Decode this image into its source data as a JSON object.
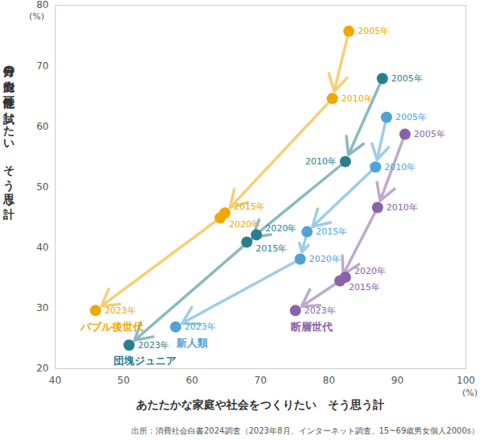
{
  "chart_data": {
    "type": "scatter",
    "x_label": "あたたかな家庭や社会をつくりたい　そう思う計",
    "y_label": "自分の能力や可能性を試したい　そう思う計",
    "x_unit": "(%)",
    "y_unit": "(%)",
    "source": "出所：消費社会白書2024調査（2023年8月、インターネット調査、15~69歳男女個人2000s）",
    "xlim": [
      40,
      100
    ],
    "ylim": [
      20,
      80
    ],
    "xticks": [
      40,
      50,
      60,
      70,
      80,
      90,
      100
    ],
    "yticks": [
      20,
      30,
      40,
      50,
      60,
      70,
      80
    ],
    "grid": false,
    "marker": "circle",
    "line_style": "arrow",
    "series": [
      {
        "name": "バブル後世代",
        "color": "#f0a800",
        "point_labels": [
          "2005年",
          "2010年",
          "2015年",
          "2020年",
          "2023年"
        ],
        "x": [
          82.9,
          80.5,
          64.8,
          64.1,
          45.9
        ],
        "values": [
          75.7,
          64.6,
          45.7,
          44.9,
          29.6
        ]
      },
      {
        "name": "団塊ジュニア",
        "color": "#2a7f8f",
        "point_labels": [
          "2005年",
          "2010年",
          "2015年",
          "2020年",
          "2023年"
        ],
        "x": [
          87.8,
          82.4,
          68.0,
          69.4,
          50.8
        ],
        "values": [
          67.9,
          54.2,
          40.9,
          42.1,
          23.9
        ]
      },
      {
        "name": "新人類",
        "color": "#4fa3d9",
        "point_labels": [
          "2005年",
          "2010年",
          "2015年",
          "2020年",
          "2023年"
        ],
        "x": [
          88.4,
          86.8,
          76.8,
          75.8,
          57.6
        ],
        "values": [
          61.5,
          53.3,
          42.6,
          38.1,
          26.9
        ]
      },
      {
        "name": "断層世代",
        "color": "#8a62a8",
        "point_labels": [
          "2005年",
          "2010年",
          "2015年",
          "2020年",
          "2023年"
        ],
        "x": [
          91.1,
          87.1,
          81.6,
          82.4,
          75.1
        ],
        "values": [
          58.7,
          46.6,
          34.5,
          35.1,
          29.6
        ]
      }
    ]
  }
}
